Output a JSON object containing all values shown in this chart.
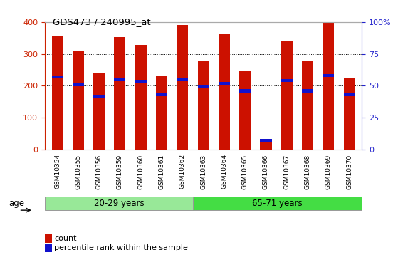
{
  "title": "GDS473 / 240995_at",
  "samples": [
    "GSM10354",
    "GSM10355",
    "GSM10356",
    "GSM10359",
    "GSM10360",
    "GSM10361",
    "GSM10362",
    "GSM10363",
    "GSM10364",
    "GSM10365",
    "GSM10366",
    "GSM10367",
    "GSM10368",
    "GSM10369",
    "GSM10370"
  ],
  "counts": [
    355,
    308,
    242,
    352,
    328,
    230,
    390,
    280,
    362,
    246,
    32,
    342,
    280,
    402,
    224
  ],
  "percentile_ranks": [
    57,
    51,
    42,
    55,
    53,
    43,
    55,
    49,
    52,
    46,
    7,
    54,
    46,
    58,
    43
  ],
  "groups": [
    {
      "label": "20-29 years",
      "start": 0,
      "end": 7,
      "color": "#98E898"
    },
    {
      "label": "65-71 years",
      "start": 7,
      "end": 15,
      "color": "#44DD44"
    }
  ],
  "age_label": "age",
  "ylim_left": [
    0,
    400
  ],
  "ylim_right": [
    0,
    100
  ],
  "yticks_left": [
    0,
    100,
    200,
    300,
    400
  ],
  "yticks_right": [
    0,
    25,
    50,
    75,
    100
  ],
  "yticklabels_right": [
    "0",
    "25",
    "50",
    "75",
    "100%"
  ],
  "bar_color": "#CC1100",
  "marker_color": "#1111CC",
  "bg_color": "#FFFFFF",
  "grid_color": "#000000",
  "left_tick_color": "#CC2200",
  "right_tick_color": "#2222CC",
  "bar_width": 0.55
}
